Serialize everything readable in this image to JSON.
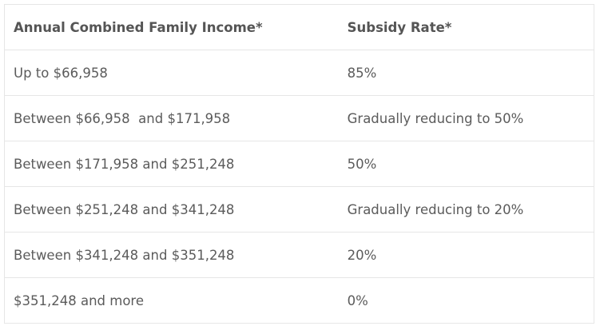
{
  "table": {
    "headers": [
      "Annual Combined Family Income*",
      "Subsidy Rate*"
    ],
    "rows": [
      [
        "Up to $66,958",
        "85%"
      ],
      [
        "Between $66,958  and $171,958",
        "Gradually reducing to 50%"
      ],
      [
        "Between $171,958 and $251,248",
        "50%"
      ],
      [
        "Between $251,248 and $341,248",
        "Gradually reducing to 20%"
      ],
      [
        "Between $341,248 and $351,248",
        "20%"
      ],
      [
        "$351,248 and more",
        "0%"
      ]
    ]
  }
}
